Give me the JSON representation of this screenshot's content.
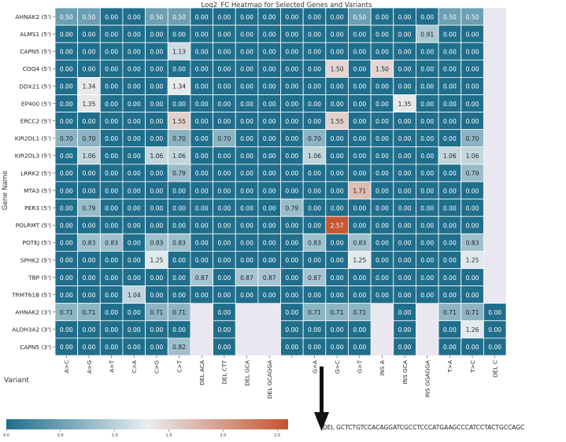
{
  "chart_data": {
    "type": "heatmap",
    "title": "Log2_FC Heatmap for Selected Genes and Variants",
    "ylabel": "Gene Name",
    "xlabel": "Variant",
    "rows": [
      "AHNAK2 (5')",
      "ALMS1 (5')",
      "CAPN5 (5')",
      "COQ4 (5')",
      "DDX21 (5')",
      "EP400 (5')",
      "ERCC2 (5')",
      "KIR2DL1 (5')",
      "KIR2DL3 (5')",
      "LRRK2 (5')",
      "MTA3 (5')",
      "PER3 (5')",
      "POLRMT (5')",
      "POTEJ (5')",
      "SPHK2 (5')",
      "TBP (5')",
      "TRMT61B (5')",
      "AHNAK2 (3')",
      "ALDH3A2 (3')",
      "CAPN5 (3')"
    ],
    "columns": [
      "A>C",
      "A>G",
      "A>T",
      "C>A",
      "C>G",
      "C>T",
      "DEL ACA",
      "DEL CTT",
      "DEL GCA",
      "DEL GCAGGA",
      "",
      "G>A",
      "G>C",
      "G>T",
      "INS A",
      "INS GCA",
      "INS GGAGGA",
      "T>A",
      "T>C",
      "DEL C"
    ],
    "values": [
      [
        0.5,
        0.5,
        0.0,
        0.0,
        0.5,
        0.5,
        0.0,
        0.0,
        0.0,
        0.0,
        0.0,
        0.0,
        0.0,
        0.5,
        0.0,
        0.0,
        0.0,
        0.5,
        0.5,
        null
      ],
      [
        0.0,
        0.0,
        0.0,
        0.0,
        0.0,
        0.0,
        0.0,
        0.0,
        0.0,
        0.0,
        0.0,
        0.0,
        0.0,
        0.0,
        0.0,
        0.0,
        0.91,
        0.0,
        0.0,
        null
      ],
      [
        0.0,
        0.0,
        0.0,
        0.0,
        0.0,
        1.13,
        0.0,
        0.0,
        0.0,
        0.0,
        0.0,
        0.0,
        0.0,
        0.0,
        0.0,
        0.0,
        0.0,
        0.0,
        0.0,
        null
      ],
      [
        0.0,
        0.0,
        0.0,
        0.0,
        0.0,
        0.0,
        0.0,
        0.0,
        0.0,
        0.0,
        0.0,
        0.0,
        1.5,
        0.0,
        1.5,
        0.0,
        0.0,
        0.0,
        0.0,
        null
      ],
      [
        0.0,
        1.34,
        0.0,
        0.0,
        0.0,
        1.34,
        0.0,
        0.0,
        0.0,
        0.0,
        0.0,
        0.0,
        0.0,
        0.0,
        0.0,
        0.0,
        0.0,
        0.0,
        0.0,
        null
      ],
      [
        0.0,
        1.35,
        0.0,
        0.0,
        0.0,
        0.0,
        0.0,
        0.0,
        0.0,
        0.0,
        0.0,
        0.0,
        0.0,
        0.0,
        0.0,
        1.35,
        0.0,
        0.0,
        0.0,
        null
      ],
      [
        0.0,
        0.0,
        0.0,
        0.0,
        0.0,
        1.55,
        0.0,
        0.0,
        0.0,
        0.0,
        0.0,
        0.0,
        1.55,
        0.0,
        0.0,
        0.0,
        0.0,
        0.0,
        0.0,
        null
      ],
      [
        0.7,
        0.7,
        0.0,
        0.0,
        0.0,
        0.7,
        0.0,
        0.7,
        0.0,
        0.0,
        0.0,
        0.7,
        0.0,
        0.0,
        0.0,
        0.0,
        0.0,
        0.0,
        0.7,
        null
      ],
      [
        0.0,
        1.06,
        0.0,
        0.0,
        1.06,
        1.06,
        0.0,
        0.0,
        0.0,
        0.0,
        0.0,
        1.06,
        0.0,
        0.0,
        0.0,
        0.0,
        0.0,
        1.06,
        1.06,
        null
      ],
      [
        0.0,
        0.0,
        0.0,
        0.0,
        0.0,
        0.79,
        0.0,
        0.0,
        0.0,
        0.0,
        0.0,
        0.0,
        0.0,
        0.0,
        0.0,
        0.0,
        0.0,
        0.0,
        0.79,
        null
      ],
      [
        0.0,
        0.0,
        0.0,
        0.0,
        0.0,
        0.0,
        0.0,
        0.0,
        0.0,
        0.0,
        0.0,
        0.0,
        0.0,
        1.71,
        0.0,
        0.0,
        0.0,
        0.0,
        0.0,
        null
      ],
      [
        0.0,
        0.79,
        0.0,
        0.0,
        0.0,
        0.0,
        0.0,
        0.0,
        0.0,
        0.0,
        0.79,
        0.0,
        0.0,
        0.0,
        0.0,
        0.0,
        0.0,
        0.0,
        0.0,
        null
      ],
      [
        0.0,
        0.0,
        0.0,
        0.0,
        0.0,
        0.0,
        0.0,
        0.0,
        0.0,
        0.0,
        0.0,
        0.0,
        2.57,
        0.0,
        0.0,
        0.0,
        0.0,
        0.0,
        0.0,
        null
      ],
      [
        0.0,
        0.83,
        0.83,
        0.0,
        0.83,
        0.83,
        0.0,
        0.0,
        0.0,
        0.0,
        0.0,
        0.83,
        0.0,
        0.83,
        0.0,
        0.0,
        0.0,
        0.0,
        0.83,
        null
      ],
      [
        0.0,
        0.0,
        0.0,
        0.0,
        1.25,
        0.0,
        0.0,
        0.0,
        0.0,
        0.0,
        0.0,
        0.0,
        0.0,
        1.25,
        0.0,
        0.0,
        0.0,
        0.0,
        1.25,
        null
      ],
      [
        0.0,
        0.0,
        0.0,
        0.0,
        0.0,
        0.0,
        0.87,
        0.0,
        0.87,
        0.87,
        0.0,
        0.87,
        0.0,
        0.0,
        0.0,
        0.0,
        0.0,
        0.0,
        0.0,
        null
      ],
      [
        0.0,
        0.0,
        0.0,
        1.04,
        0.0,
        0.0,
        0.0,
        0.0,
        0.0,
        0.0,
        0.0,
        0.0,
        0.0,
        0.0,
        0.0,
        0.0,
        0.0,
        0.0,
        0.0,
        null
      ],
      [
        0.71,
        0.71,
        0.0,
        0.0,
        0.71,
        0.71,
        null,
        0.0,
        null,
        null,
        0.0,
        0.71,
        0.71,
        0.71,
        null,
        0.0,
        null,
        0.71,
        0.71,
        0.0
      ],
      [
        0.0,
        0.0,
        0.0,
        0.0,
        0.0,
        0.0,
        null,
        0.0,
        null,
        null,
        0.0,
        0.0,
        0.0,
        0.0,
        null,
        0.0,
        null,
        0.0,
        1.26,
        0.0
      ],
      [
        0.0,
        0.0,
        0.0,
        0.0,
        0.0,
        0.82,
        null,
        0.0,
        null,
        null,
        0.0,
        0.0,
        0.0,
        0.0,
        null,
        0.0,
        null,
        0.0,
        0.0,
        0.0
      ]
    ],
    "vmin": 0.0,
    "vmax": 2.6,
    "colormap": [
      "#1f6e8c",
      "#e8eef1",
      "#c4532e"
    ],
    "colorbar_ticks": [
      "0.0",
      "0.5",
      "1.0",
      "1.5",
      "2.0",
      "2.5"
    ],
    "colorbar_position": "bottom",
    "missing_color": "#e9e8f1",
    "annotation": "DEL GCTCTGTCCACAGGATCGCCTCCCATGAAGCCCATCCTACTGCCAGC"
  }
}
